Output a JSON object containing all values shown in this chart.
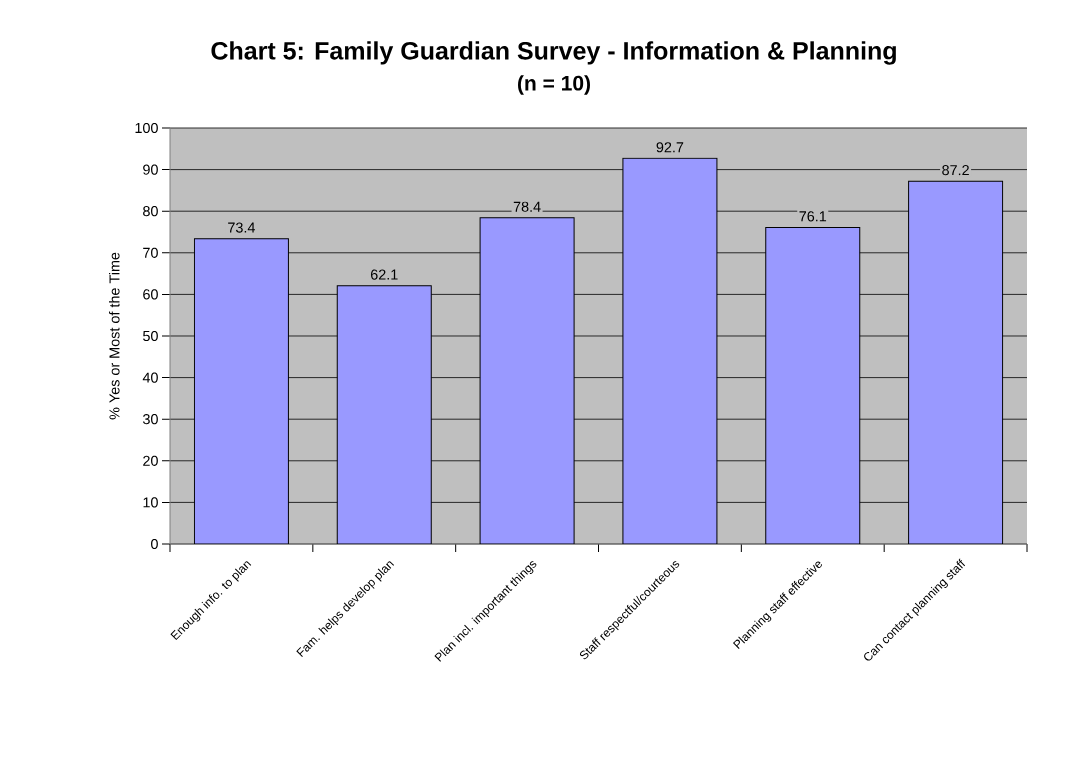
{
  "chart_data": {
    "type": "bar",
    "title": "Chart 5:  Family Guardian Survey - Information & Planning",
    "subtitle": "(n = 10)",
    "ylabel": "% Yes or Most of the Time",
    "categories": [
      "Enough info. to plan",
      "Fam. helps develop plan",
      "Plan incl. important things",
      "Staff respectful/courteous",
      "Planning staff effective",
      "Can contact planning staff"
    ],
    "values": [
      73.4,
      62.1,
      78.4,
      92.7,
      76.1,
      87.2
    ],
    "color": "#9999ff",
    "ylim": [
      0,
      100
    ],
    "yticks": [
      0,
      10,
      20,
      30,
      40,
      50,
      60,
      70,
      80,
      90,
      100
    ],
    "grid": "y",
    "data_labels": true
  }
}
